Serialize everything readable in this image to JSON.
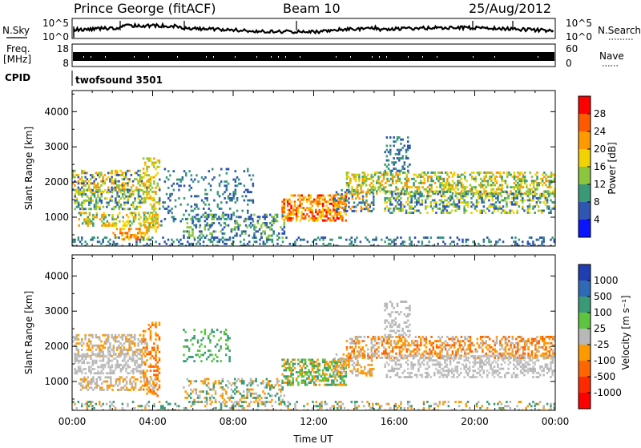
{
  "header": {
    "station": "Prince George (fitACF)",
    "beam": "Beam 10",
    "date": "25/Aug/2012"
  },
  "top_panels": {
    "nsky_label": "N.Sky",
    "nsky_ticks": [
      "10^5",
      "10^0"
    ],
    "nsearch_label": "N.Search",
    "nsearch_ticks": [
      "10^5",
      "10^0"
    ],
    "freq_label": "Freq.",
    "freq_unit": "[MHz]",
    "freq_ticks": [
      "18",
      "8"
    ],
    "nave_label": "Nave",
    "nave_ticks": [
      "60",
      "0"
    ],
    "cpid_label": "CPID",
    "cpid_value": "twofsound 3501"
  },
  "chart_data": [
    {
      "type": "heatmap",
      "name": "power-panel",
      "xlabel": "",
      "ylabel": "Slant Range [km]",
      "xlim": [
        0,
        24
      ],
      "ylim": [
        180,
        4600
      ],
      "yticks": [
        1000,
        2000,
        3000,
        4000
      ],
      "colorbar": {
        "label": "Power [dB]",
        "ticks": [
          "28",
          "24",
          "20",
          "16",
          "12",
          "8",
          "4"
        ],
        "colors": [
          "#ff0000",
          "#ff5a00",
          "#ff9900",
          "#f2d200",
          "#8cc63f",
          "#3a9a78",
          "#2f56b2",
          "#0b14ff"
        ]
      },
      "scatter_bands": [
        {
          "t0": 0.0,
          "t1": 3.7,
          "r0": 1750,
          "r1": 2350,
          "d": 0.45,
          "c": [
            "#8cc63f",
            "#f2d200",
            "#ff9900",
            "#2f56b2"
          ]
        },
        {
          "t0": 0.1,
          "t1": 3.5,
          "r0": 1250,
          "r1": 1800,
          "d": 0.45,
          "c": [
            "#8cc63f",
            "#f2d200",
            "#3a9a78",
            "#2f56b2"
          ]
        },
        {
          "t0": 0.3,
          "t1": 4.2,
          "r0": 750,
          "r1": 1150,
          "d": 0.4,
          "c": [
            "#8cc63f",
            "#f2d200",
            "#ff9900",
            "#3a9a78"
          ]
        },
        {
          "t0": 2.0,
          "t1": 3.8,
          "r0": 400,
          "r1": 700,
          "d": 0.45,
          "c": [
            "#ff9900",
            "#ff5a00",
            "#f2d200"
          ]
        },
        {
          "t0": 3.5,
          "t1": 4.3,
          "r0": 600,
          "r1": 2700,
          "d": 0.35,
          "c": [
            "#ff9900",
            "#8cc63f",
            "#f2d200"
          ]
        },
        {
          "t0": 4.3,
          "t1": 9.0,
          "r0": 800,
          "r1": 2400,
          "d": 0.15,
          "c": [
            "#2f56b2",
            "#3a9a78"
          ]
        },
        {
          "t0": 5.5,
          "t1": 10.5,
          "r0": 400,
          "r1": 1100,
          "d": 0.3,
          "c": [
            "#2f56b2",
            "#3a9a78",
            "#8cc63f"
          ]
        },
        {
          "t0": 10.4,
          "t1": 13.6,
          "r0": 900,
          "r1": 1650,
          "d": 0.55,
          "c": [
            "#ff0000",
            "#ff5a00",
            "#ff9900",
            "#f2d200"
          ]
        },
        {
          "t0": 13.0,
          "t1": 15.0,
          "r0": 1200,
          "r1": 1800,
          "d": 0.35,
          "c": [
            "#ff9900",
            "#3a9a78",
            "#2f56b2"
          ]
        },
        {
          "t0": 13.6,
          "t1": 24.0,
          "r0": 1700,
          "r1": 2300,
          "d": 0.45,
          "c": [
            "#3a9a78",
            "#8cc63f",
            "#f2d200",
            "#ff9900"
          ]
        },
        {
          "t0": 15.5,
          "t1": 24.0,
          "r0": 1150,
          "r1": 1750,
          "d": 0.4,
          "c": [
            "#3a9a78",
            "#8cc63f",
            "#2f56b2",
            "#f2d200"
          ]
        },
        {
          "t0": 15.5,
          "t1": 16.8,
          "r0": 2300,
          "r1": 3300,
          "d": 0.3,
          "c": [
            "#2f56b2",
            "#3a9a78"
          ]
        },
        {
          "t0": 0.0,
          "t1": 24.0,
          "r0": 200,
          "r1": 450,
          "d": 0.25,
          "c": [
            "#2f56b2",
            "#3a9a78"
          ]
        }
      ]
    },
    {
      "type": "heatmap",
      "name": "velocity-panel",
      "xlabel": "Time UT",
      "ylabel": "Slant Range [km]",
      "xlim": [
        0,
        24
      ],
      "ylim": [
        180,
        4600
      ],
      "yticks": [
        1000,
        2000,
        3000,
        4000
      ],
      "xticks": [
        "00:00",
        "04:00",
        "08:00",
        "12:00",
        "16:00",
        "20:00",
        "00:00"
      ],
      "xtick_hours": [
        0,
        4,
        8,
        12,
        16,
        20,
        24
      ],
      "colorbar": {
        "label": "Velocity [m s⁻¹]",
        "ticks": [
          "1000",
          "500",
          "100",
          "25",
          "-25",
          "-100",
          "-500",
          "-1000"
        ],
        "colors": [
          "#1f3fb0",
          "#2f6ab8",
          "#3a9a78",
          "#5cc43f",
          "#b8b8b8",
          "#ff9900",
          "#ff6600",
          "#ff2a00",
          "#ff0000"
        ]
      },
      "scatter_bands": [
        {
          "t0": 0.0,
          "t1": 3.7,
          "r0": 1750,
          "r1": 2350,
          "d": 0.45,
          "c": [
            "#b8b8b8",
            "#b8b8b8",
            "#ff9900"
          ]
        },
        {
          "t0": 0.1,
          "t1": 3.5,
          "r0": 1250,
          "r1": 1800,
          "d": 0.45,
          "c": [
            "#b8b8b8",
            "#b8b8b8",
            "#c8c8c8"
          ]
        },
        {
          "t0": 0.3,
          "t1": 4.2,
          "r0": 750,
          "r1": 1150,
          "d": 0.4,
          "c": [
            "#b8b8b8",
            "#ff9900",
            "#b8b8b8"
          ]
        },
        {
          "t0": 3.5,
          "t1": 4.3,
          "r0": 600,
          "r1": 2700,
          "d": 0.35,
          "c": [
            "#ff9900",
            "#ff6600"
          ]
        },
        {
          "t0": 5.5,
          "t1": 7.8,
          "r0": 1600,
          "r1": 2500,
          "d": 0.2,
          "c": [
            "#3a9a78",
            "#5cc43f"
          ]
        },
        {
          "t0": 5.5,
          "t1": 10.5,
          "r0": 400,
          "r1": 1100,
          "d": 0.3,
          "c": [
            "#b8b8b8",
            "#3a9a78",
            "#ff9900"
          ]
        },
        {
          "t0": 10.4,
          "t1": 13.6,
          "r0": 900,
          "r1": 1650,
          "d": 0.55,
          "c": [
            "#3a9a78",
            "#5cc43f",
            "#ff9900"
          ]
        },
        {
          "t0": 13.0,
          "t1": 15.0,
          "r0": 1200,
          "r1": 1800,
          "d": 0.35,
          "c": [
            "#ff9900",
            "#b8b8b8"
          ]
        },
        {
          "t0": 13.6,
          "t1": 24.0,
          "r0": 1700,
          "r1": 2300,
          "d": 0.45,
          "c": [
            "#ff9900",
            "#b8b8b8",
            "#ff6600"
          ]
        },
        {
          "t0": 15.5,
          "t1": 24.0,
          "r0": 1150,
          "r1": 1750,
          "d": 0.4,
          "c": [
            "#b8b8b8",
            "#b8b8b8",
            "#c8c8c8"
          ]
        },
        {
          "t0": 15.5,
          "t1": 16.8,
          "r0": 2300,
          "r1": 3300,
          "d": 0.3,
          "c": [
            "#b8b8b8"
          ]
        },
        {
          "t0": 0.0,
          "t1": 24.0,
          "r0": 200,
          "r1": 450,
          "d": 0.25,
          "c": [
            "#ff9900",
            "#b8b8b8",
            "#3a9a78"
          ]
        }
      ]
    }
  ]
}
